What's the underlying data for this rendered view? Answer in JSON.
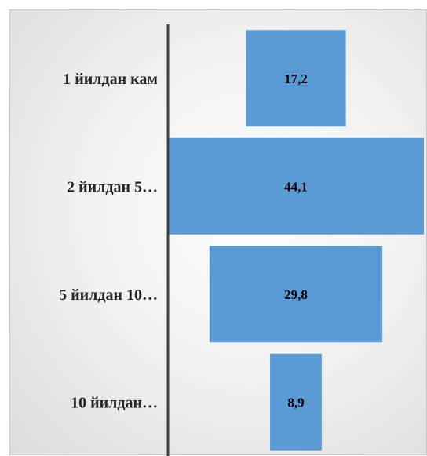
{
  "chart_data": {
    "type": "bar",
    "orientation": "horizontal",
    "style": "funnel",
    "categories": [
      "1 йилдан кам",
      "2 йилдан 5…",
      "5 йилдан 10…",
      "10 йилдан…"
    ],
    "values": [
      17.2,
      44.1,
      29.8,
      8.9
    ],
    "value_labels": [
      "17,2",
      "44,1",
      "29,8",
      "8,9"
    ],
    "title": "",
    "xlabel": "",
    "ylabel": "",
    "grid": false,
    "legend": "none",
    "bar_color": "#5b9bd5",
    "axis_color": "#404040"
  }
}
